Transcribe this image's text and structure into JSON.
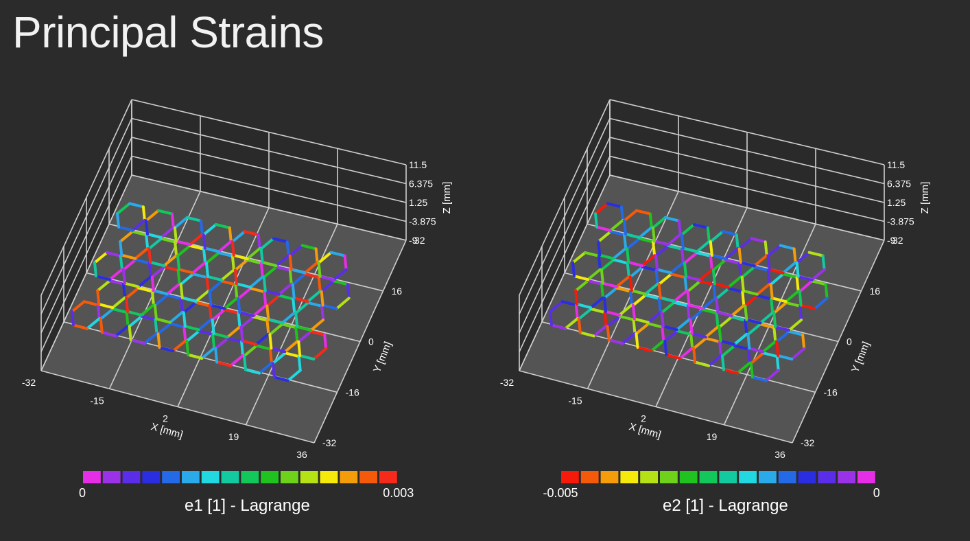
{
  "title": "Principal Strains",
  "colors": {
    "background": "#2b2b2b",
    "grid": "#cfcfcf",
    "floor": "#5c5c5c"
  },
  "chart_data": [
    {
      "type": "heatmap",
      "subtype": "3d-surface-strain-map",
      "colorbar": {
        "title": "e1 [1] - Lagrange",
        "min_label": "0",
        "max_label": "0.003",
        "min": 0,
        "max": 0.003,
        "colors": [
          "#e62ee6",
          "#9a33e8",
          "#5a2ee8",
          "#2a2ee0",
          "#2469e6",
          "#2aaae8",
          "#22d8e0",
          "#12c9a0",
          "#12c85a",
          "#1fc21f",
          "#6ed21a",
          "#b4e214",
          "#f5ea0a",
          "#f59c0a",
          "#f55a0a",
          "#f52a1a"
        ]
      },
      "axes": {
        "x": {
          "label": "X [mm]",
          "ticks": [
            "-32",
            "-15",
            "2",
            "19",
            "36"
          ],
          "range": [
            -32,
            36
          ]
        },
        "y": {
          "label": "Y [mm]",
          "ticks": [
            "-32",
            "-16",
            "0",
            "16",
            "32"
          ],
          "range": [
            -32,
            32
          ]
        },
        "z": {
          "label": "Z [mm]",
          "ticks": [
            "-9",
            "-3.875",
            "1.25",
            "6.375",
            "11.5"
          ],
          "range": [
            -9,
            11.5
          ]
        }
      },
      "grid": true
    },
    {
      "type": "heatmap",
      "subtype": "3d-surface-strain-map",
      "colorbar": {
        "title": "e2 [1] - Lagrange",
        "min_label": "-0.005",
        "max_label": "0",
        "min": -0.005,
        "max": 0,
        "colors": [
          "#f51a0a",
          "#f55a0a",
          "#f59c0a",
          "#f5ea0a",
          "#b4e214",
          "#6ed21a",
          "#1fc21f",
          "#12c85a",
          "#12c9a0",
          "#22d8e0",
          "#2aaae8",
          "#2469e6",
          "#2a2ee0",
          "#5a2ee8",
          "#9a33e8",
          "#e62ee6"
        ]
      },
      "axes": {
        "x": {
          "label": "X [mm]",
          "ticks": [
            "-32",
            "-15",
            "2",
            "19",
            "36"
          ],
          "range": [
            -32,
            36
          ]
        },
        "y": {
          "label": "Y [mm]",
          "ticks": [
            "-32",
            "-16",
            "0",
            "16",
            "32"
          ],
          "range": [
            -32,
            32
          ]
        },
        "z": {
          "label": "Z [mm]",
          "ticks": [
            "-9",
            "-3.875",
            "1.25",
            "6.375",
            "11.5"
          ],
          "range": [
            -9,
            11.5
          ]
        }
      },
      "grid": true
    }
  ]
}
